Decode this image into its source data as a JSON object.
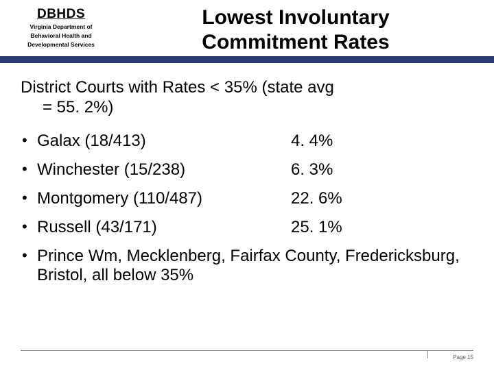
{
  "header": {
    "acronym": "DBHDS",
    "org_line1": "Virginia Department of",
    "org_line2": "Behavioral Health and",
    "org_line3": "Developmental Services",
    "title_line1": "Lowest Involuntary",
    "title_line2": "Commitment Rates",
    "bar_color": "#2a3b73"
  },
  "subhead": {
    "line1": "District Courts with Rates < 35% (state avg",
    "line2": "= 55. 2%)"
  },
  "rows": [
    {
      "name": "Galax  (18/413)",
      "pct": "4. 4%"
    },
    {
      "name": "Winchester  (15/238)",
      "pct": "6. 3%"
    },
    {
      "name": "Montgomery  (110/487)",
      "pct": "22. 6%"
    },
    {
      "name": "Russell  (43/171)",
      "pct": "25. 1%"
    }
  ],
  "last_bullet": "Prince Wm, Mecklenberg, Fairfax County, Fredericksburg, Bristol, all below 35%",
  "footer": {
    "page_label": "Page 15"
  }
}
